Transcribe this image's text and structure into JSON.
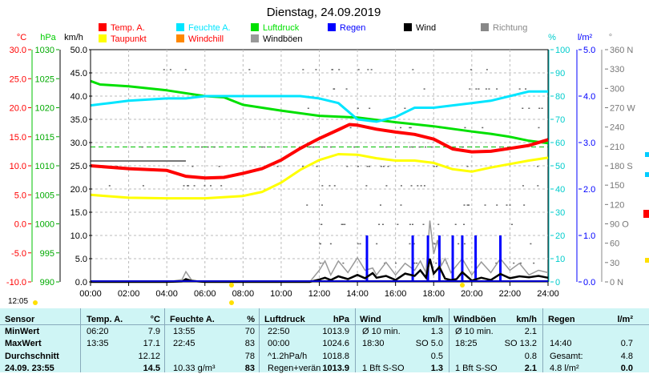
{
  "title": "Dienstag, 24.09.2019",
  "legend": [
    {
      "label": "Temp. A.",
      "color": "#ff0000"
    },
    {
      "label": "Feuchte A.",
      "color": "#00e5ff"
    },
    {
      "label": "Luftdruck",
      "color": "#00e000"
    },
    {
      "label": "Regen",
      "color": "#0000ff"
    },
    {
      "label": "Wind",
      "color": "#000000"
    },
    {
      "label": "Richtung",
      "color": "#888888"
    },
    {
      "label": "Taupunkt",
      "color": "#ffff00"
    },
    {
      "label": "Windchill",
      "color": "#ff8800"
    },
    {
      "label": "Windböen",
      "color": "#999999"
    }
  ],
  "units": {
    "temp": "°C",
    "pressure": "hPa",
    "wind": "km/h",
    "humidity": "%",
    "rain": "l/m²"
  },
  "timestamp": "12:05",
  "chart_data": {
    "type": "line",
    "x_ticks": [
      "00:00",
      "02:00",
      "04:00",
      "06:00",
      "08:00",
      "10:00",
      "12:00",
      "14:00",
      "16:00",
      "18:00",
      "20:00",
      "22:00",
      "24:00"
    ],
    "axes": {
      "temp": {
        "ticks": [
          "30.0",
          "25.0",
          "20.0",
          "15.0",
          "10.0",
          "5.0",
          "0.0",
          "-5.0",
          "-10.0"
        ],
        "range": [
          -10,
          30
        ]
      },
      "pressure": {
        "ticks": [
          "1030",
          "1025",
          "1020",
          "1015",
          "1010",
          "1005",
          "1000",
          "995",
          "990"
        ],
        "range": [
          990,
          1030
        ]
      },
      "wind": {
        "ticks": [
          "50.0",
          "45.0",
          "40.0",
          "35.0",
          "30.0",
          "25.0",
          "20.0",
          "15.0",
          "10.0",
          "5.0",
          "0.0"
        ],
        "range": [
          0,
          50
        ]
      },
      "humidity": {
        "ticks": [
          "100",
          "90",
          "80",
          "70",
          "60",
          "50",
          "40",
          "30",
          "20",
          "10",
          "0"
        ],
        "range": [
          0,
          100
        ]
      },
      "rain": {
        "ticks": [
          "5.0",
          "4.0",
          "3.0",
          "2.0",
          "1.0",
          "0.0"
        ],
        "range": [
          0,
          5
        ]
      },
      "direction": {
        "ticks": [
          "360 N",
          "330",
          "300",
          "270 W",
          "240",
          "210",
          "180 S",
          "150",
          "120",
          "90 O",
          "60",
          "30",
          "0 N"
        ],
        "range": [
          0,
          360
        ]
      }
    },
    "series": [
      {
        "name": "Temp. A.",
        "axis": "temp",
        "x": [
          0,
          2,
          4,
          5,
          6,
          7,
          8,
          9,
          10,
          11,
          12,
          13,
          13.58,
          14,
          15,
          16,
          17,
          18,
          19,
          20,
          21,
          22,
          23,
          24
        ],
        "y": [
          10.0,
          9.5,
          9.2,
          8.2,
          7.9,
          8.0,
          8.7,
          9.5,
          11.0,
          13.0,
          14.7,
          16.2,
          17.1,
          17.0,
          16.3,
          15.8,
          15.4,
          14.6,
          12.9,
          12.4,
          12.5,
          13.0,
          13.5,
          14.5
        ]
      },
      {
        "name": "Taupunkt",
        "axis": "temp",
        "x": [
          0,
          2,
          4,
          6,
          8,
          9,
          10,
          11,
          12,
          13,
          14,
          15,
          16,
          17,
          18,
          19,
          20,
          21,
          22,
          23,
          24
        ],
        "y": [
          5.0,
          4.5,
          4.4,
          4.4,
          4.8,
          5.5,
          7.1,
          9.3,
          11.0,
          12.0,
          11.9,
          11.3,
          10.9,
          10.9,
          10.5,
          9.4,
          9.0,
          9.7,
          10.3,
          10.9,
          11.4
        ]
      },
      {
        "name": "Feuchte A.",
        "axis": "humidity",
        "x": [
          0,
          1,
          2,
          4,
          5,
          6,
          8,
          10,
          11,
          12,
          13,
          14,
          15,
          16,
          17,
          18,
          19,
          20,
          21,
          22,
          23,
          24
        ],
        "y": [
          76,
          77,
          78,
          79,
          79,
          80,
          80,
          80,
          80,
          79,
          77,
          70,
          69,
          71,
          75,
          75,
          76,
          77,
          78,
          80,
          82,
          82
        ]
      },
      {
        "name": "Luftdruck",
        "axis": "pressure",
        "x": [
          0,
          0.5,
          2,
          4,
          6,
          7,
          8,
          10,
          12,
          14,
          16,
          18,
          20,
          21,
          22,
          23,
          24
        ],
        "y": [
          1024.6,
          1024.0,
          1023.7,
          1023.0,
          1022.0,
          1021.8,
          1020.5,
          1019.5,
          1018.6,
          1018.3,
          1017.5,
          1016.8,
          1015.9,
          1015.5,
          1015.0,
          1014.3,
          1013.9
        ]
      }
    ],
    "rain_bars": [
      {
        "x": 14.5,
        "y": 1.0
      },
      {
        "x": 16.9,
        "y": 1.0
      },
      {
        "x": 17.7,
        "y": 1.0
      },
      {
        "x": 18.3,
        "y": 1.0
      },
      {
        "x": 19.0,
        "y": 1.0
      },
      {
        "x": 19.5,
        "y": 1.0
      },
      {
        "x": 20.2,
        "y": 1.0
      },
      {
        "x": 21.5,
        "y": 1.0
      }
    ],
    "wind_x": [
      0,
      4,
      4.8,
      5.0,
      5.3,
      6,
      11.5,
      12,
      12.3,
      12.6,
      13,
      13.5,
      14,
      14.4,
      14.8,
      15,
      15.5,
      16,
      16.5,
      17,
      17.3,
      17.6,
      17.8,
      18.0,
      18.3,
      18.6,
      18.9,
      19.2,
      19.5,
      20,
      20.5,
      21,
      21.5,
      22,
      22.5,
      23,
      23.5,
      24
    ],
    "wind_y": [
      0,
      0,
      0.1,
      0.6,
      0.2,
      0,
      0,
      0.5,
      0.9,
      0.4,
      1.2,
      0.6,
      1.5,
      0.8,
      1.9,
      0.9,
      1.3,
      0.4,
      1.8,
      1.3,
      2.5,
      0.9,
      5.0,
      1.8,
      3.2,
      0.7,
      0.4,
      0.6,
      2.1,
      0.3,
      0.9,
      0.4,
      1.7,
      0.8,
      1.2,
      1.0,
      1.3,
      0.9
    ],
    "gust_x": [
      0,
      4,
      4.8,
      5.0,
      5.3,
      6,
      11.5,
      12,
      12.3,
      12.6,
      13,
      13.5,
      14,
      14.4,
      14.8,
      15,
      15.5,
      16,
      16.5,
      17,
      17.3,
      17.6,
      17.8,
      18.0,
      18.2,
      18.4,
      18.6,
      18.9,
      19.2,
      19.5,
      20,
      20.5,
      21,
      21.5,
      22,
      22.5,
      23,
      23.5,
      24
    ],
    "gust_y": [
      0,
      0,
      0.5,
      2.2,
      0.4,
      0,
      0,
      2.5,
      4.5,
      1.5,
      4.5,
      2,
      5.2,
      2.5,
      3,
      1.5,
      4.2,
      1.5,
      4,
      2.5,
      4.5,
      2,
      13.2,
      6,
      9,
      3.5,
      5,
      2,
      3.5,
      5,
      1.5,
      4.3,
      2,
      5,
      2.5,
      4,
      1.5,
      2.5,
      2
    ],
    "pressure_ref": 1013.25
  },
  "stats": {
    "headers": {
      "sensor": "Sensor",
      "temp": "Temp. A.",
      "temp_u": "°C",
      "hum": "Feuchte A.",
      "hum_u": "%",
      "press": "Luftdruck",
      "press_u": "hPa",
      "wind": "Wind",
      "wind_u": "km/h",
      "gust": "Windböen",
      "gust_u": "km/h",
      "rain": "Regen",
      "rain_u": "l/m²"
    },
    "rows": [
      {
        "label": "MinWert",
        "temp_t": "06:20",
        "temp_v": "7.9",
        "hum_t": "13:55",
        "hum_v": "70",
        "press_t": "22:50",
        "press_v": "1013.9",
        "wind_t": "Ø 10 min.",
        "wind_v": "1.3",
        "gust_t": "Ø 10 min.",
        "gust_v": "2.1",
        "rain_t": "",
        "rain_v": ""
      },
      {
        "label": "MaxWert",
        "temp_t": "13:35",
        "temp_v": "17.1",
        "hum_t": "22:45",
        "hum_v": "83",
        "press_t": "00:00",
        "press_v": "1024.6",
        "wind_t": "18:30",
        "wind_v": "SO 5.0",
        "gust_t": "18:25",
        "gust_v": "SO 13.2",
        "rain_t": "14:40",
        "rain_v": "0.7"
      },
      {
        "label": "Durchschnitt",
        "temp_t": "",
        "temp_v": "12.12",
        "hum_t": "",
        "hum_v": "78",
        "press_t": "^1.2hPa/h",
        "press_v": "1018.8",
        "wind_t": "",
        "wind_v": "0.5",
        "gust_t": "",
        "gust_v": "0.8",
        "rain_t": "Gesamt:",
        "rain_v": "4.8"
      },
      {
        "label": "24.09. 23:55",
        "temp_t": "",
        "temp_v": "14.5",
        "hum_t": "10.33 g/m³",
        "hum_v": "83",
        "press_t": "Regen+verän",
        "press_v": "1013.9",
        "wind_t": "1 Bft S-SO",
        "wind_v": "1.3",
        "gust_t": "1 Bft S-SO",
        "gust_v": "2.1",
        "rain_t": "4.8 l/m²",
        "rain_v": "0.0"
      }
    ]
  }
}
